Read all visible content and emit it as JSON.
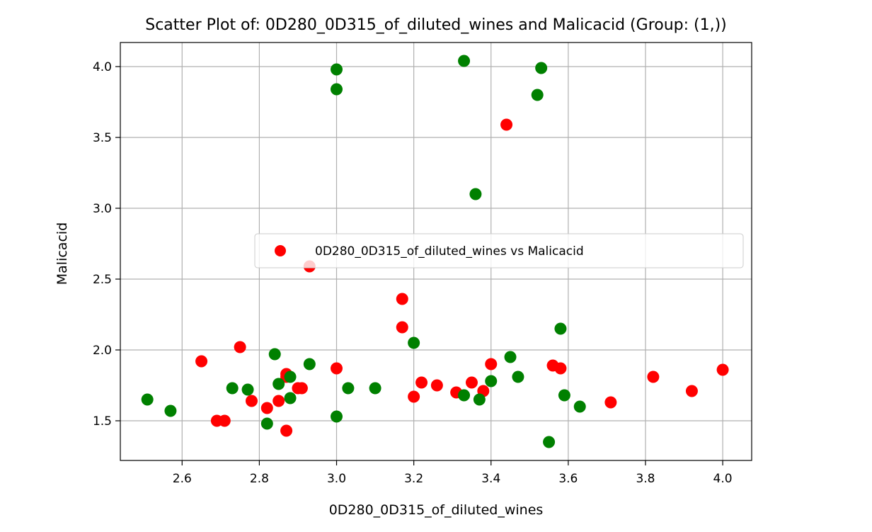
{
  "chart_data": {
    "type": "scatter",
    "title": "Scatter Plot of: 0D280_0D315_of_diluted_wines and Malicacid (Group: (1,))",
    "xlabel": "0D280_0D315_of_diluted_wines",
    "ylabel": "Malicacid",
    "xlim": [
      2.44,
      4.075
    ],
    "ylim": [
      1.22,
      4.17
    ],
    "xticks": [
      2.6,
      2.8,
      3.0,
      3.2,
      3.4,
      3.6,
      3.8,
      4.0
    ],
    "xtick_labels": [
      "2.6",
      "2.8",
      "3.0",
      "3.2",
      "3.4",
      "3.6",
      "3.8",
      "4.0"
    ],
    "yticks": [
      1.5,
      2.0,
      2.5,
      3.0,
      3.5,
      4.0
    ],
    "ytick_labels": [
      "1.5",
      "2.0",
      "2.5",
      "3.0",
      "3.5",
      "4.0"
    ],
    "grid": true,
    "legend_position": "center-right",
    "legend": [
      {
        "label": "0D280_0D315_of_diluted_wines vs Malicacid",
        "color": "#ff0000"
      }
    ],
    "series": [
      {
        "color": "#ff0000",
        "points": [
          [
            2.65,
            1.92
          ],
          [
            2.69,
            1.5
          ],
          [
            2.71,
            1.5
          ],
          [
            2.75,
            2.02
          ],
          [
            2.78,
            1.64
          ],
          [
            2.82,
            1.59
          ],
          [
            2.85,
            1.64
          ],
          [
            2.87,
            1.43
          ],
          [
            2.87,
            1.81
          ],
          [
            2.87,
            1.83
          ],
          [
            2.9,
            1.73
          ],
          [
            2.91,
            1.73
          ],
          [
            2.93,
            2.59
          ],
          [
            3.0,
            1.87
          ],
          [
            3.17,
            2.36
          ],
          [
            3.17,
            2.16
          ],
          [
            3.2,
            1.67
          ],
          [
            3.22,
            1.77
          ],
          [
            3.26,
            1.75
          ],
          [
            3.31,
            1.7
          ],
          [
            3.35,
            1.77
          ],
          [
            3.38,
            1.71
          ],
          [
            3.4,
            1.9
          ],
          [
            3.44,
            3.59
          ],
          [
            3.56,
            1.89
          ],
          [
            3.58,
            1.87
          ],
          [
            3.71,
            1.63
          ],
          [
            3.82,
            1.81
          ],
          [
            3.92,
            1.71
          ],
          [
            4.0,
            1.86
          ]
        ]
      },
      {
        "color": "#008000",
        "points": [
          [
            2.51,
            1.65
          ],
          [
            2.57,
            1.57
          ],
          [
            2.73,
            1.73
          ],
          [
            2.77,
            1.72
          ],
          [
            2.82,
            1.48
          ],
          [
            2.84,
            1.97
          ],
          [
            2.85,
            1.76
          ],
          [
            2.88,
            1.81
          ],
          [
            2.88,
            1.66
          ],
          [
            2.93,
            1.9
          ],
          [
            3.0,
            3.98
          ],
          [
            3.0,
            3.84
          ],
          [
            3.0,
            1.53
          ],
          [
            3.03,
            1.73
          ],
          [
            3.1,
            1.73
          ],
          [
            3.2,
            2.05
          ],
          [
            3.33,
            4.04
          ],
          [
            3.33,
            1.68
          ],
          [
            3.36,
            3.1
          ],
          [
            3.37,
            1.65
          ],
          [
            3.4,
            1.78
          ],
          [
            3.45,
            1.95
          ],
          [
            3.47,
            1.81
          ],
          [
            3.52,
            3.8
          ],
          [
            3.53,
            3.99
          ],
          [
            3.55,
            1.35
          ],
          [
            3.58,
            2.15
          ],
          [
            3.59,
            1.68
          ],
          [
            3.63,
            1.6
          ]
        ]
      }
    ]
  }
}
